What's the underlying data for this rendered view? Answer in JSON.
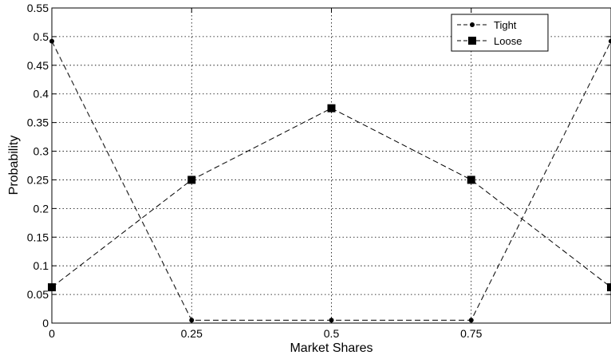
{
  "chart_data": {
    "type": "line",
    "xlabel": "Market Shares",
    "ylabel": "Probability",
    "xlim": [
      0,
      1
    ],
    "ylim": [
      0,
      0.55
    ],
    "x_ticks": [
      0,
      0.25,
      0.5,
      0.75
    ],
    "x_tick_labels": [
      "0",
      "0.25",
      "0.5",
      "0.75"
    ],
    "y_ticks": [
      0,
      0.05,
      0.1,
      0.15,
      0.2,
      0.25,
      0.3,
      0.35,
      0.4,
      0.45,
      0.5,
      0.55
    ],
    "y_tick_labels": [
      "0",
      "0.05",
      "0.1",
      "0.15",
      "0.2",
      "0.25",
      "0.3",
      "0.35",
      "0.4",
      "0.45",
      "0.5",
      "0.55"
    ],
    "grid": true,
    "legend_position": "top-right",
    "x": [
      0,
      0.25,
      0.5,
      0.75,
      1
    ],
    "series": [
      {
        "name": "Tight",
        "marker": "dot",
        "line_style": "dashed",
        "color": "#000000",
        "values": [
          0.492,
          0.005,
          0.005,
          0.005,
          0.492
        ]
      },
      {
        "name": "Loose",
        "marker": "square",
        "line_style": "dashed",
        "color": "#000000",
        "values": [
          0.0625,
          0.25,
          0.375,
          0.25,
          0.0625
        ]
      }
    ]
  }
}
